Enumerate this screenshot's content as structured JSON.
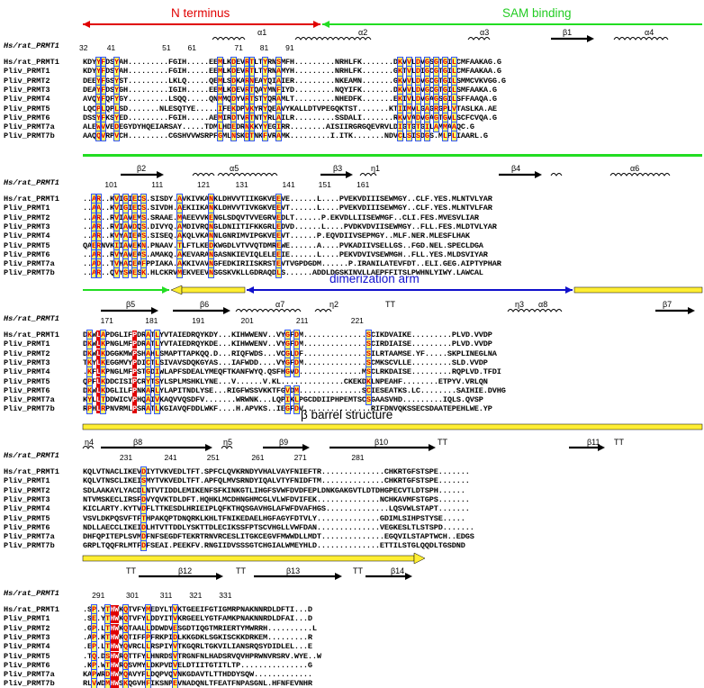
{
  "regions": {
    "n_terminus": "N terminus",
    "sam_binding": "SAM binding",
    "dimerization_arm": "dimerization arm",
    "beta_barrel": "β barrel structure"
  },
  "colors": {
    "n_terminus": "#e00000",
    "sam_binding": "#22dd22",
    "dimerization_arm": "#1010cc",
    "beta_barrel": "#ffee33",
    "conserved": "#e00000",
    "similar": "#ffff66"
  },
  "reference_label": "Hs/rat_PRMT1",
  "blocks": [
    {
      "numbers": "32         41                      51        61                  71        81        91",
      "ss_labels": [
        "α1",
        "α2",
        "α3",
        "β1",
        "α4"
      ],
      "rows": [
        {
          "name": "Hs/rat_PRMT1",
          "seq": "KDYYFDSYAH.........FGIH.....EEMLKDEVRTLTYRNSMFH.........NRHLFK.......DKVVLDVGSGTGILCMFAAKAG.G"
        },
        {
          "name": "Pliv_PRMT1",
          "seq": "KDYYFDSYAH.........FGIH.....EEMLKDEVRTLTYRNAMYH.........NRHLFK.......GKTVLDIGCGTGILCMFAAKAA.G"
        },
        {
          "name": "Pliv_PRMT2",
          "seq": "DEEYFGSYST.........LKLQ.....QEMLSDKARNEAYQIAIER.........NKEAMN.......GKVVLDVGCGTGILSMMCVKVGG.G"
        },
        {
          "name": "Pliv_PRMT3",
          "seq": "DEAYFDSYGH.........IGIH.....EEMLKDEVRTQAYMNFIYD.........NQYIFK.......DKVVLDVGCGTGILSMFAAKA.G"
        },
        {
          "name": "Pliv_PRMT4",
          "seq": "AVQYFQFYGY.........LSQQ.....QNMMQDYVRTSTYQRAMLT.........NHEDFK.......EKIVLDVGAGSGILSFFAAQA.G"
        },
        {
          "name": "Pliv_PRMT5",
          "seq": "LQCPLQPLSD.......NLESQTYE.....IFEKDPVKYRYQEAVYKALLDTVPEGQKTST.......KTIIMVLGAGRGPLVTASLKA.AE"
        },
        {
          "name": "Pliv_PRMT6",
          "seq": "DSSYFKSYED.........FGIH.....AEMIRDTVRTNTYRLAILR.........SSDALI.......RKVVADVGAGTGVLSCFCVQA.G"
        },
        {
          "name": "Pliv_PRMT7a",
          "seq": "ALEWVVEDEGYDYHQEIARSAY.....TDMLHDEDRNKKYYEGIRR........AISIIRGRGQEVRVLDIGTGTGILAMMAAQC.G"
        },
        {
          "name": "Pliv_PRMT7b",
          "seq": "AAQQVRPVCH.........CGSHVVWSRPFGMLNSKDTNKFVRAMK.........I.ITK.......NDVCLSISDGS.MLPLIAARL.G"
        }
      ]
    },
    {
      "numbers": "            101                111                121            131                141           151            161",
      "ss_labels": [
        "β2",
        "α5",
        "β3",
        "η1",
        "β4",
        "α6"
      ],
      "rows": [
        {
          "name": "Hs/rat_PRMT1",
          "seq": "..AR..KVIGIECS.SISDY.AVKIVKANKLDHVVTIIKGKVEEVE......L....PVEKVDIIISEWMGY..CLF.YES.MLNTVLYAR"
        },
        {
          "name": "Pliv_PRMT1",
          "seq": "..AA..KVIGIECS.SIVDH.AEKIIKANKLDHVVTIVKGKVEEVT......L....PVEKVDIIISEWMGY..CLF.YES.MLNTVLFAR"
        },
        {
          "name": "Pliv_PRMT2",
          "seq": "..AR..RVIAVEMS.SRAAE.MAEEVVKENGLSDQVTVVEGRVEDLT......P.EKVDLLIISEWMGF..CLI.FES.MVESVLIAR"
        },
        {
          "name": "Pliv_PRMT3",
          "seq": "..AR..RVIAVDQS.DIVYQ.AMDIVRQNGLDNIITIFKKGRLEDVD......L....PVDKVDVIISEWMGY..FLL.FES.MLDTVLYAR"
        },
        {
          "name": "Pliv_PRMT4",
          "seq": "..AR..KVYAIEAS.SISEQ.AKQLVKANNLGNRIMVIPGKVEEVT......P.EQVDIIVSEPMGY..MLF.NER.MLESFLHAK"
        },
        {
          "name": "Pliv_PRMT5",
          "seq": "QAERNVKIIAVEKN.PNAAV.TLFTLKEDKWGDLVTVVQTDMREWE......A....PVKADIIVSELLGS..FGD.NEL.SPECLDGA"
        },
        {
          "name": "Pliv_PRMT6",
          "seq": "..AR..RVYAVEAS.AMAKQ.AKEVARANGASNKIEVIQLELEEIE......L....PEKVDVIVSEWMGH..FLL.YES.MLDSVIYAR"
        },
        {
          "name": "Pliv_PRMT7a",
          "seq": "..AD..TVHACEAFPPIAKA.AKKIVAVNGFEDKIRIISKRSTEVTVGPDGDM......P.IRANILATEVFDT..ELI.GEG.AIPTYPHAR"
        },
        {
          "name": "Pliv_PRMT7b",
          "seq": "..AR..QVYSAESK.HLCKRVMEKVEEVNSGSKVKLLGDRAQDLS......ADDLDGSKINVLLAEPFFITSLPWHNLYIWY.LAWCAL"
        }
      ]
    },
    {
      "numbers": "          171               181                191                 201                    211                    221",
      "ss_labels": [
        "β5",
        "β6",
        "α7",
        "η2",
        "TT",
        "η3",
        "α8",
        "β7"
      ],
      "rows": [
        {
          "name": "Hs/rat_PRMT1",
          "seq": "DKWLAPDGLIFPDRATLYVTAIEDRQYKDY...KIHWWENV..VYGFDM..............SCIKDVAIKE.........PLVD.VVDP"
        },
        {
          "name": "Pliv_PRMT1",
          "seq": "DKWLKPNGLMFPDRATLYVTAIEDRQYKDE...KIHWWENV..VYGFDM..............SCIRDIAISE.........PLVD.VVDP"
        },
        {
          "name": "Pliv_PRMT2",
          "seq": "DKWLKDGGKMWPSHAHLSMAPTTAPKQQ.D...RIQFWDS...VCGLDF..............SILRTAAMSE.YF.....SKPLINEGLNA"
        },
        {
          "name": "Pliv_PRMT3",
          "seq": "TKYLKEGGMVYPDICTLSIVAVSDQKGYAS...IAFWDD....VYGFDM..............SCMKSCVLLE.........SLD.VVDP"
        },
        {
          "name": "Pliv_PRMT4",
          "seq": ".KFLKPNGLMFPSTGDIWLAPFSDEALYMEQFTKANFWYQ.QSFHGVD..............MSCLRKDAISE.........RQPLVD.TFDI"
        },
        {
          "name": "Pliv_PRMT5",
          "seq": "QPFLKDDCISIPCRYTSYLSPLMSHKLYNE...V......V.KL..............CKEKDKLNPEAHF........ETPYV.VRLQN"
        },
        {
          "name": "Pliv_PRMT6",
          "seq": "DKWLKDGLILFPNKARLYLAPITNDLYSE...RIGFWSSVKKTFGVDM..............SCIESEATKS.LC........SAIHIE.DVHG"
        },
        {
          "name": "Pliv_PRMT7a",
          "seq": "KYLLTDDWICVPHQAIVKAQVVQSDFV.......WRWNK...LQPIKLPGCDDIIPHPEMTSCSGAASVHD.........IQLS.QVSP"
        },
        {
          "name": "Pliv_PRMT7b",
          "seq": "RPHLRPNVRMLPSRATLKGIAVQFDDLWKF....H.APVKS..IEGFDV...............RIFDNVQKSSECSDAATEPEHLWE.YP"
        }
      ]
    },
    {
      "numbers": "                   231               241              251               261              271                     281",
      "ss_labels": [
        "η4",
        "β8",
        "η5",
        "β9",
        "β10",
        "TT",
        "β11",
        "TT"
      ],
      "rows": [
        {
          "name": "Hs/rat_PRMT1",
          "seq": "KQLVTNACLIKEVDIYTVKVEDLTFT.SPFCLQVKRNDYVHALVAYFNIEFTR..............CHKRTGFSTSPE......."
        },
        {
          "name": "Pliv_PRMT1",
          "seq": "KQLVTNSCLIKEISMYTVKVEDLTFT.APFQLMVSRNDYIQALVTYFNIDFTM..............CHKRTGFSTSPE......."
        },
        {
          "name": "Pliv_PRMT2",
          "seq": "SDLAAKAYLYACDLNTVTIDDLEMIKENFSFKINKGTLIHGFSVWFDVDFEPLDNKGAKGVTLDTDHGPECVTLDTSPH......"
        },
        {
          "name": "Pliv_PRMT3",
          "seq": "NTVMSKECLIRSFDVYQVKTDLDFT.HQHKLMCDHNGHMCGLVLWFDVIFEK..............NCHKAVMFSTGPS......."
        },
        {
          "name": "Pliv_PRMT4",
          "seq": "KICLARTY.KYTVDFLTTKESDLHRIEIPLQFKTHQSGAVHGLAFWFDVAFHGS..............LQSVWLSTAPT......."
        },
        {
          "name": "Pliv_PRMT5",
          "seq": "VSVLDKPQSVFTFTHPAKQPTDNQRKLKHLTFNIKEDAELHGFAGYFDTVLY..............GDIMLSIHPSTYSE....."
        },
        {
          "name": "Pliv_PRMT6",
          "seq": "NDLLAECCLIKEIDLHTVTTDDLYSKTTDLECIKSSFPTSCVHGLLVWFDAN..............VEGKESLTLSTSPD......."
        },
        {
          "name": "Pliv_PRMT7a",
          "seq": "DHFQPITEPLSVMDFNFSEGDFTEKRTRNVRCESLITGKCEGVFMWWDLLMDT..............EGQVILSTAPTWCH..EDGS"
        },
        {
          "name": "Pliv_PRMT7b",
          "seq": "GRPLTQQFRLMTFDFSEAI.PEEKFV.RNGIIDVSSSGTCHGIALWMEYHLD..............ETTILSTGLQQDLTGSDND"
        }
      ]
    },
    {
      "numbers": "      291          301          311        321        331",
      "ss_labels": [
        "TT",
        "β12",
        "TT",
        "β13",
        "TT",
        "β14"
      ],
      "rows": [
        {
          "name": "Hs/rat_PRMT1",
          "seq": ".SP.YTHWKQTVFYMEDYLTVKTGEEIFGTIGMRPNAKNNRDLDFTI...D"
        },
        {
          "name": "Pliv_PRMT1",
          "seq": ".SE.YTHWKQTVFYLDDYITVKRGEELYGTFAMKPNAKNNRDLDFAI...D"
        },
        {
          "name": "Pliv_PRMT2",
          "seq": ".GP.LTHWKQTAALLDDWDVESGDTIQGTMRIERTYMWRRH..........L"
        },
        {
          "name": "Pliv_PRMT3",
          "seq": ".AP.KTHWKQTIFFPFRKPIDLKKGDKLSGKISCKKDRKEM.........R"
        },
        {
          "name": "Pliv_PRMT4",
          "seq": ".EP.LTHWYQVRCLLRSPIYVTKGQRLTGKVILIANSRQSYDIDLEL...E"
        },
        {
          "name": "Pliv_PRMT5",
          "seq": ".TQ.DSHWRQTTFYLHNRDSVTRGNFNLHADSRVQVHPRWNVRSRV.WYE..W"
        },
        {
          "name": "Pliv_PRMT6",
          "seq": ".KP.WTHWRQSVMYLDKPVDVELDTIITGTITLTP...............G"
        },
        {
          "name": "Pliv_PRMT7a",
          "seq": "KAPWRDHWMQAVYFLDQPVQVNKGDAVTLTTHDDYSQW............."
        },
        {
          "name": "Pliv_PRMT7b",
          "seq": "RLVWDMHWSKQGVHFIKSNPEVNADQNLTFEATFNPASGNL.HFNFEVNHR"
        }
      ]
    }
  ]
}
